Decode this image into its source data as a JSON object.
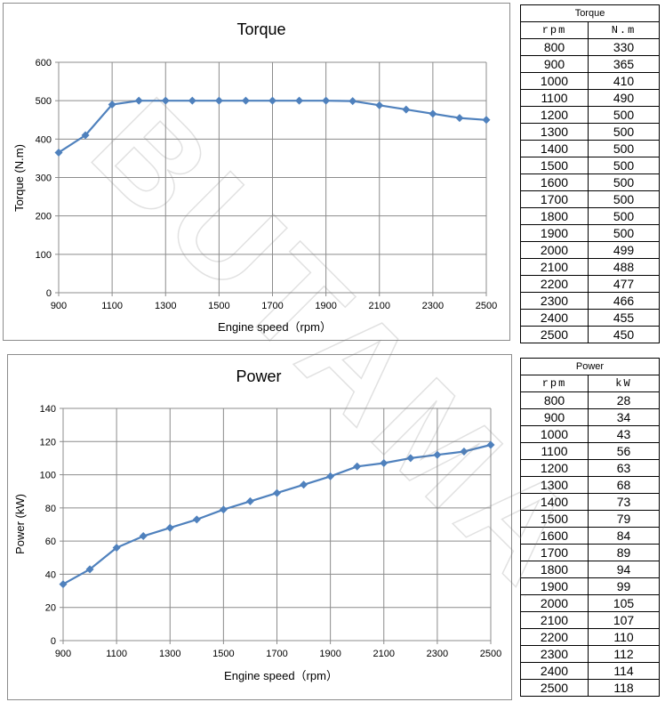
{
  "chart_data": [
    {
      "type": "line",
      "title": "Torque",
      "xlabel": "Engine speed（rpm）",
      "ylabel": "Torque (N.m)",
      "xlim": [
        900,
        2500
      ],
      "ylim": [
        0,
        600
      ],
      "x_ticks": [
        900,
        1100,
        1300,
        1500,
        1700,
        1900,
        2100,
        2300,
        2500
      ],
      "y_ticks": [
        0,
        100,
        200,
        300,
        400,
        500,
        600
      ],
      "grid": true,
      "color": "#4f81bd",
      "series": [
        {
          "x": [
            900,
            1000,
            1100,
            1200,
            1300,
            1400,
            1500,
            1600,
            1700,
            1800,
            1900,
            2000,
            2100,
            2200,
            2300,
            2400,
            2500
          ],
          "values": [
            365,
            410,
            490,
            500,
            500,
            500,
            500,
            500,
            500,
            500,
            500,
            499,
            488,
            477,
            466,
            455,
            450
          ]
        }
      ]
    },
    {
      "type": "line",
      "title": "Power",
      "xlabel": "Engine speed（rpm）",
      "ylabel": "Power (kW)",
      "xlim": [
        900,
        2500
      ],
      "ylim": [
        0,
        140
      ],
      "x_ticks": [
        900,
        1100,
        1300,
        1500,
        1700,
        1900,
        2100,
        2300,
        2500
      ],
      "y_ticks": [
        0,
        20,
        40,
        60,
        80,
        100,
        120,
        140
      ],
      "grid": true,
      "color": "#4f81bd",
      "series": [
        {
          "x": [
            900,
            1000,
            1100,
            1200,
            1300,
            1400,
            1500,
            1600,
            1700,
            1800,
            1900,
            2000,
            2100,
            2200,
            2300,
            2400,
            2500
          ],
          "values": [
            34,
            43,
            56,
            63,
            68,
            73,
            79,
            84,
            89,
            94,
            99,
            105,
            107,
            110,
            112,
            114,
            118
          ]
        }
      ]
    }
  ],
  "tables": {
    "torque": {
      "title": "Torque",
      "headers": [
        "rpm",
        "N.m"
      ],
      "rows": [
        [
          "800",
          "330"
        ],
        [
          "900",
          "365"
        ],
        [
          "1000",
          "410"
        ],
        [
          "1100",
          "490"
        ],
        [
          "1200",
          "500"
        ],
        [
          "1300",
          "500"
        ],
        [
          "1400",
          "500"
        ],
        [
          "1500",
          "500"
        ],
        [
          "1600",
          "500"
        ],
        [
          "1700",
          "500"
        ],
        [
          "1800",
          "500"
        ],
        [
          "1900",
          "500"
        ],
        [
          "2000",
          "499"
        ],
        [
          "2100",
          "488"
        ],
        [
          "2200",
          "477"
        ],
        [
          "2300",
          "466"
        ],
        [
          "2400",
          "455"
        ],
        [
          "2500",
          "450"
        ]
      ]
    },
    "power": {
      "title": "Power",
      "headers": [
        "rpm",
        "kW"
      ],
      "rows": [
        [
          "800",
          "28"
        ],
        [
          "900",
          "34"
        ],
        [
          "1000",
          "43"
        ],
        [
          "1100",
          "56"
        ],
        [
          "1200",
          "63"
        ],
        [
          "1300",
          "68"
        ],
        [
          "1400",
          "73"
        ],
        [
          "1500",
          "79"
        ],
        [
          "1600",
          "84"
        ],
        [
          "1700",
          "89"
        ],
        [
          "1800",
          "94"
        ],
        [
          "1900",
          "99"
        ],
        [
          "2000",
          "105"
        ],
        [
          "2100",
          "107"
        ],
        [
          "2200",
          "110"
        ],
        [
          "2300",
          "112"
        ],
        [
          "2400",
          "114"
        ],
        [
          "2500",
          "118"
        ]
      ]
    }
  },
  "watermark": "BUTAMAX"
}
